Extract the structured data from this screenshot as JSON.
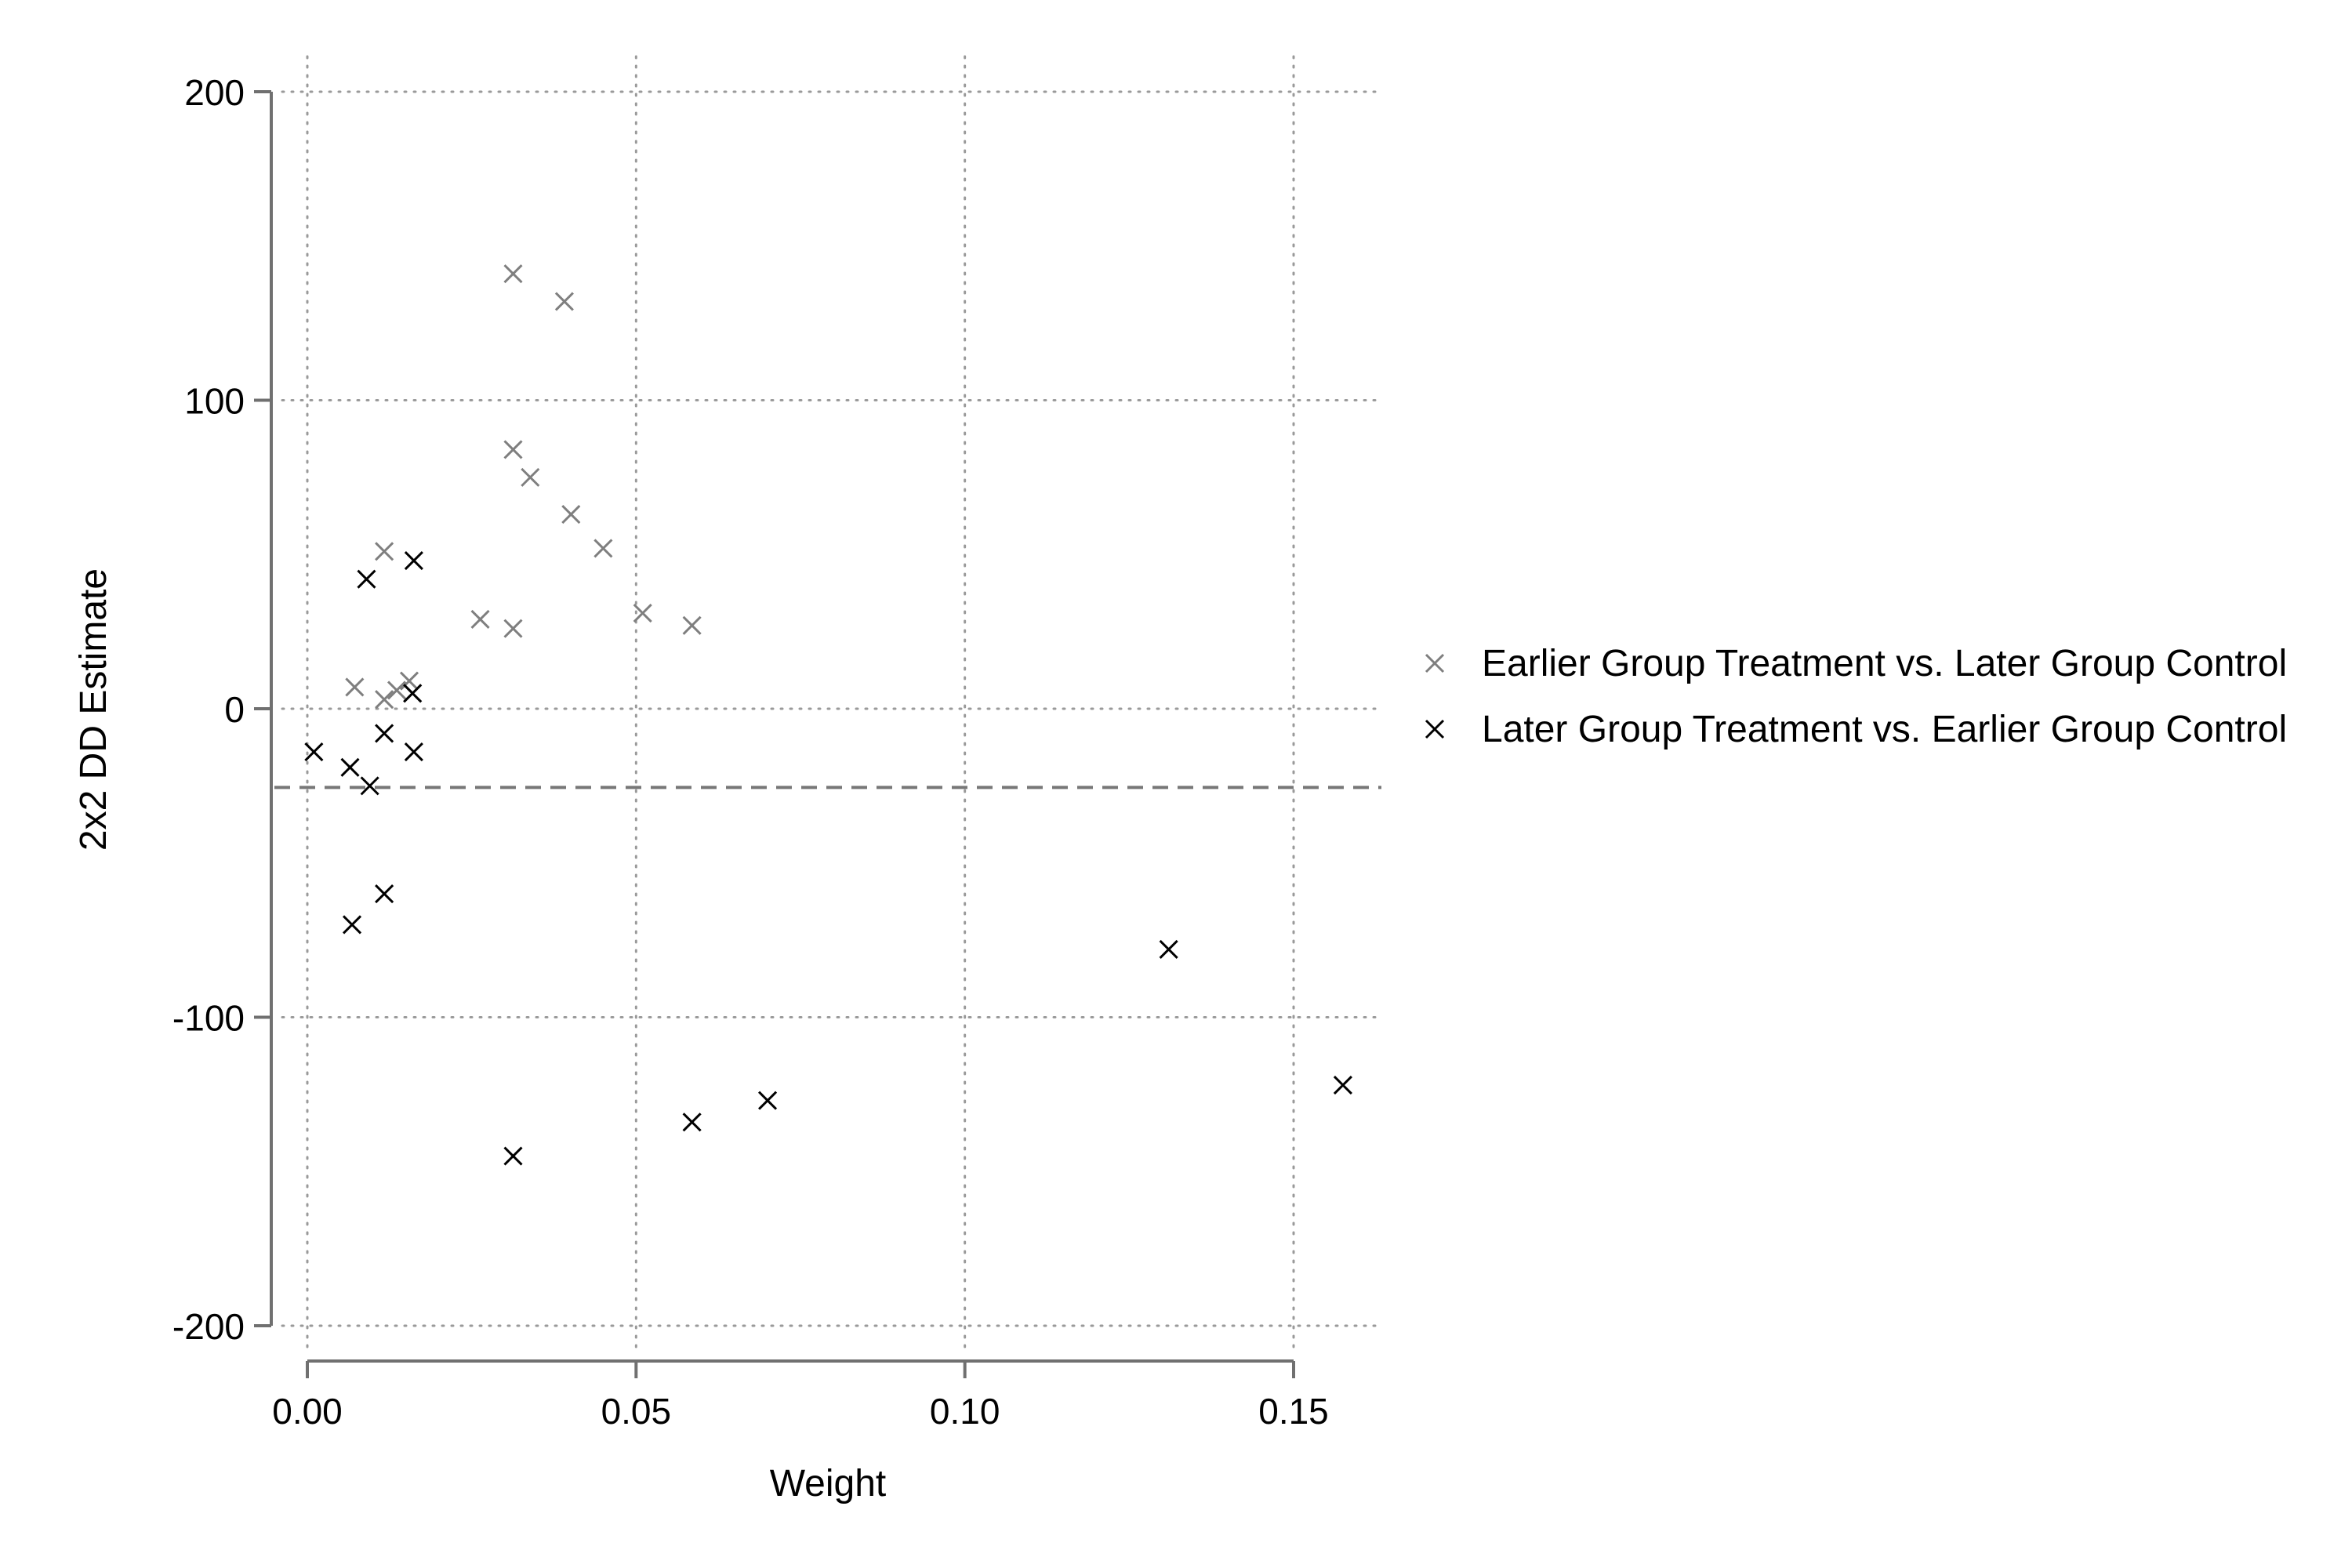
{
  "chart_data": {
    "type": "scatter",
    "title": "",
    "xlabel": "Weight",
    "ylabel": "2x2 DD Estimate",
    "xlim": [
      0.0,
      0.162
    ],
    "ylim": [
      -210,
      200
    ],
    "xticks": [
      0.0,
      0.05,
      0.1,
      0.15
    ],
    "xtick_labels": [
      "0.00",
      "0.05",
      "0.10",
      "0.15"
    ],
    "yticks": [
      -200,
      -100,
      0,
      100,
      200
    ],
    "ytick_labels": [
      "-200",
      "-100",
      "0",
      "100",
      "200"
    ],
    "grid": "dotted, both axes",
    "reference_line": {
      "y": -25.5,
      "style": "dashed",
      "color": "#777777"
    },
    "legend_position": "right",
    "series": [
      {
        "name": "Earlier Group Treatment vs. Later Group Control",
        "color": "#7f7f7f",
        "marker": "x",
        "points": [
          {
            "x": 0.0313,
            "y": 141
          },
          {
            "x": 0.0391,
            "y": 132
          },
          {
            "x": 0.0313,
            "y": 84
          },
          {
            "x": 0.0339,
            "y": 75
          },
          {
            "x": 0.0401,
            "y": 63
          },
          {
            "x": 0.045,
            "y": 52
          },
          {
            "x": 0.0117,
            "y": 51
          },
          {
            "x": 0.0263,
            "y": 29
          },
          {
            "x": 0.0313,
            "y": 26
          },
          {
            "x": 0.051,
            "y": 31
          },
          {
            "x": 0.0585,
            "y": 27
          },
          {
            "x": 0.0072,
            "y": 7
          },
          {
            "x": 0.0117,
            "y": 3
          },
          {
            "x": 0.0136,
            "y": 6
          },
          {
            "x": 0.0155,
            "y": 9
          },
          {
            "x": 0.016,
            "y": 5
          }
        ]
      },
      {
        "name": "Later Group Treatment vs. Earlier Group Control",
        "color": "#000000",
        "marker": "x",
        "points": [
          {
            "x": 0.0162,
            "y": 48
          },
          {
            "x": 0.009,
            "y": 42
          },
          {
            "x": 0.016,
            "y": 5
          },
          {
            "x": 0.0117,
            "y": -8
          },
          {
            "x": 0.001,
            "y": -14
          },
          {
            "x": 0.0162,
            "y": -14
          },
          {
            "x": 0.0065,
            "y": -19
          },
          {
            "x": 0.0095,
            "y": -25
          },
          {
            "x": 0.0117,
            "y": -60
          },
          {
            "x": 0.0068,
            "y": -70
          },
          {
            "x": 0.131,
            "y": -78
          },
          {
            "x": 0.1575,
            "y": -122
          },
          {
            "x": 0.07,
            "y": -127
          },
          {
            "x": 0.0585,
            "y": -134
          },
          {
            "x": 0.0313,
            "y": -145
          }
        ]
      }
    ]
  }
}
